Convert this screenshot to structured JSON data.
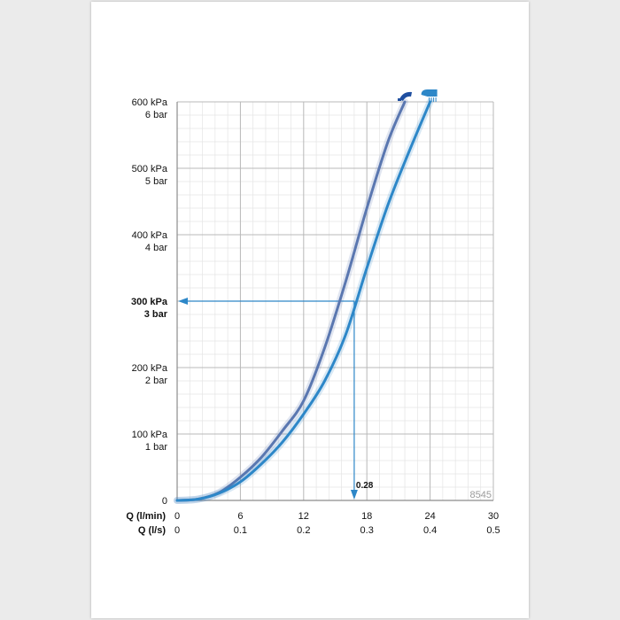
{
  "chart_data": {
    "type": "line",
    "series": [
      {
        "icon": "shower-head-icon",
        "color": "#5a77b0",
        "points": [
          [
            0,
            0
          ],
          [
            2,
            2
          ],
          [
            4,
            12
          ],
          [
            6,
            35
          ],
          [
            8,
            65
          ],
          [
            10,
            105
          ],
          [
            12,
            150
          ],
          [
            14,
            230
          ],
          [
            16,
            330
          ],
          [
            18,
            440
          ],
          [
            20,
            540
          ],
          [
            21.6,
            600
          ]
        ]
      },
      {
        "icon": "hand-shower-icon",
        "color": "#2d87c8",
        "points": [
          [
            0,
            0
          ],
          [
            2,
            2
          ],
          [
            4,
            11
          ],
          [
            6,
            28
          ],
          [
            8,
            55
          ],
          [
            10,
            88
          ],
          [
            12,
            130
          ],
          [
            14,
            180
          ],
          [
            16,
            250
          ],
          [
            18,
            350
          ],
          [
            20,
            445
          ],
          [
            22,
            525
          ],
          [
            24,
            600
          ]
        ]
      }
    ],
    "xlim": [
      0,
      30
    ],
    "ylim": [
      0,
      600
    ],
    "x_ticks_lpm": [
      "0",
      "6",
      "12",
      "18",
      "24",
      "30"
    ],
    "x_ticks_ls": [
      "0",
      "0.1",
      "0.2",
      "0.3",
      "0.4",
      "0.5"
    ],
    "y_ticks": [
      {
        "value": 0,
        "kpa": "0",
        "bar": ""
      },
      {
        "value": 100,
        "kpa": "100 kPa",
        "bar": "1 bar"
      },
      {
        "value": 200,
        "kpa": "200 kPa",
        "bar": "2 bar"
      },
      {
        "value": 300,
        "kpa": "300 kPa",
        "bar": "3 bar",
        "bold": true
      },
      {
        "value": 400,
        "kpa": "400 kPa",
        "bar": "4 bar"
      },
      {
        "value": 500,
        "kpa": "500 kPa",
        "bar": "5 bar"
      },
      {
        "value": 600,
        "kpa": "600 kPa",
        "bar": "6 bar"
      }
    ],
    "x_axis_label_lpm": "Q (l/min)",
    "x_axis_label_ls": "Q (l/s)",
    "annotation": {
      "pressure": 300,
      "flow_lpm": 16.8,
      "label": "0.28",
      "color": "#2d87c8"
    },
    "grid": true,
    "code": "8545"
  }
}
